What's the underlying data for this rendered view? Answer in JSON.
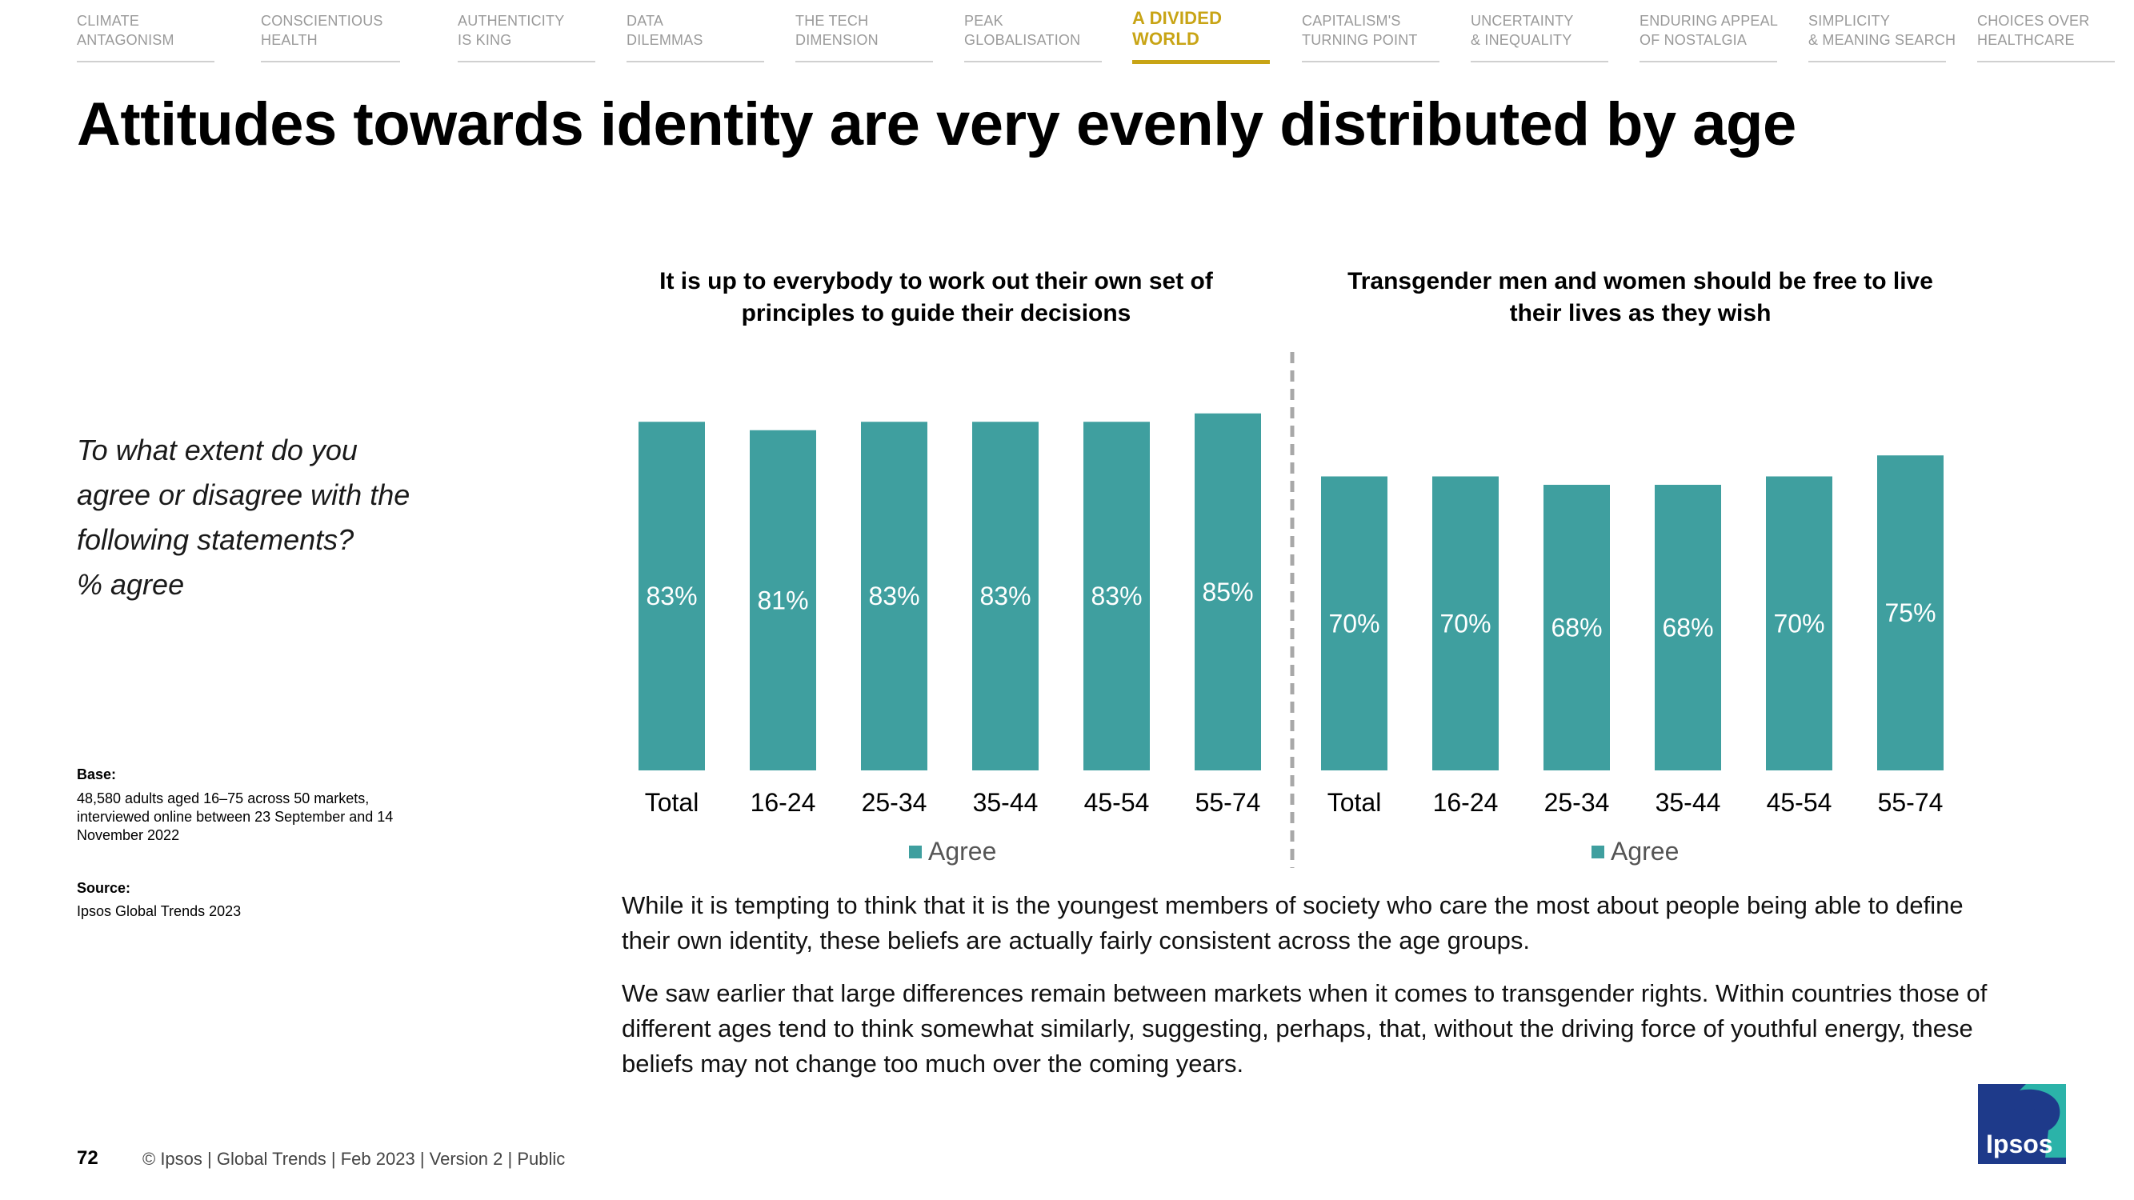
{
  "nav": {
    "items": [
      {
        "line1": "Climate",
        "line2": "Antagonism"
      },
      {
        "line1": "Conscientious",
        "line2": "Health"
      },
      {
        "line1": "Authenticity",
        "line2": "is King"
      },
      {
        "line1": "Data",
        "line2": "Dilemmas"
      },
      {
        "line1": "The Tech",
        "line2": "Dimension"
      },
      {
        "line1": "Peak",
        "line2": "Globalisation"
      },
      {
        "line1": "A Divided",
        "line2": "World"
      },
      {
        "line1": "Capitalism's",
        "line2": "Turning Point"
      },
      {
        "line1": "Uncertainty",
        "line2": "& Inequality"
      },
      {
        "line1": "Enduring Appeal",
        "line2": "of Nostalgia"
      },
      {
        "line1": "Simplicity",
        "line2": "& Meaning Search"
      },
      {
        "line1": "Choices Over",
        "line2": "Healthcare"
      }
    ],
    "active_index": 6
  },
  "title": "Attitudes towards identity are very evenly distributed by age",
  "question": {
    "line1": "To what extent do you",
    "line2": "agree or disagree with the",
    "line3": "following statements?",
    "line4": "% agree"
  },
  "base": {
    "label": "Base:",
    "text": "48,580 adults aged 16–75 across 50 markets, interviewed online between 23 September and 14 November 2022"
  },
  "source": {
    "label": "Source:",
    "text": "Ipsos Global Trends 2023"
  },
  "colors": {
    "bar": "#3f9f9f",
    "active_nav": "#c8a415",
    "logo_blue": "#1e3a8a",
    "logo_teal": "#2bb3a9"
  },
  "chart_data": [
    {
      "type": "bar",
      "title": "It is up to everybody to work out their own set of principles to guide their decisions",
      "categories": [
        "Total",
        "16-24",
        "25-34",
        "35-44",
        "45-54",
        "55-74"
      ],
      "series": [
        {
          "name": "Agree",
          "values": [
            83,
            81,
            83,
            83,
            83,
            85
          ]
        }
      ],
      "value_suffix": "%",
      "ylim": [
        0,
        100
      ],
      "legend": "bottom-center"
    },
    {
      "type": "bar",
      "title": "Transgender men and women should be free to live their lives as they wish",
      "categories": [
        "Total",
        "16-24",
        "25-34",
        "35-44",
        "45-54",
        "55-74"
      ],
      "series": [
        {
          "name": "Agree",
          "values": [
            70,
            70,
            68,
            68,
            70,
            75
          ]
        }
      ],
      "value_suffix": "%",
      "ylim": [
        0,
        100
      ],
      "legend": "bottom-center"
    }
  ],
  "body": {
    "para1": "While it is tempting to think that it is the youngest members of society who care the most about people being able to define their own identity, these beliefs are actually fairly consistent across the age groups.",
    "para2": "We saw earlier that large differences remain between markets when it comes to transgender rights. Within countries those of different ages tend to think somewhat similarly, suggesting, perhaps, that, without the driving force of youthful energy, these beliefs may not change too much over the coming years."
  },
  "footer": {
    "page": "72",
    "copy": "© Ipsos | Global Trends | Feb 2023 | Version 2 | Public"
  },
  "logo": {
    "text": "Ipsos"
  }
}
